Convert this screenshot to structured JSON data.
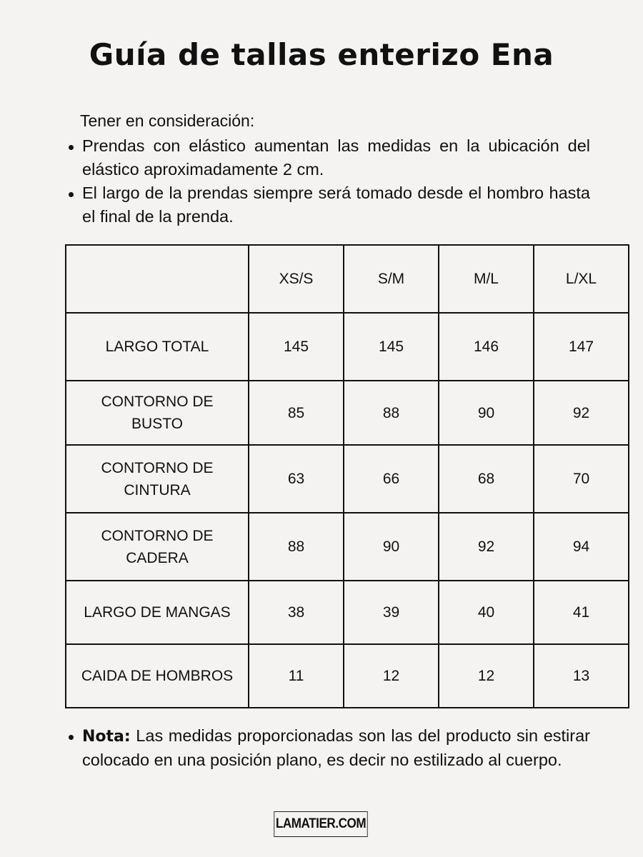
{
  "title": "Guía de tallas enterizo Ena",
  "intro": "Tener en consideración:",
  "notes": [
    "Prendas con elástico aumentan las medidas en la ubicación del elástico aproximadamente 2 cm.",
    "El largo de la prendas siempre será tomado desde el hombro hasta el final de la prenda."
  ],
  "table": {
    "headers": [
      "",
      "XS/S",
      "S/M",
      "M/L",
      "L/XL"
    ],
    "rows": [
      {
        "label": "LARGO TOTAL",
        "values": [
          "145",
          "145",
          "146",
          "147"
        ]
      },
      {
        "label": "CONTORNO DE BUSTO",
        "values": [
          "85",
          "88",
          "90",
          "92"
        ]
      },
      {
        "label": "CONTORNO DE CINTURA",
        "values": [
          "63",
          "66",
          "68",
          "70"
        ]
      },
      {
        "label": "CONTORNO DE CADERA",
        "values": [
          "88",
          "90",
          "92",
          "94"
        ]
      },
      {
        "label": "LARGO DE MANGAS",
        "values": [
          "38",
          "39",
          "40",
          "41"
        ]
      },
      {
        "label": "CAIDA DE HOMBROS",
        "values": [
          "11",
          "12",
          "12",
          "13"
        ]
      }
    ]
  },
  "nota": {
    "label": "Nota:",
    "text": " Las medidas proporcionadas son las del producto sin estirar colocado en una posición plano, es decir no estilizado al cuerpo."
  },
  "logo": "LAMATIER.COM"
}
